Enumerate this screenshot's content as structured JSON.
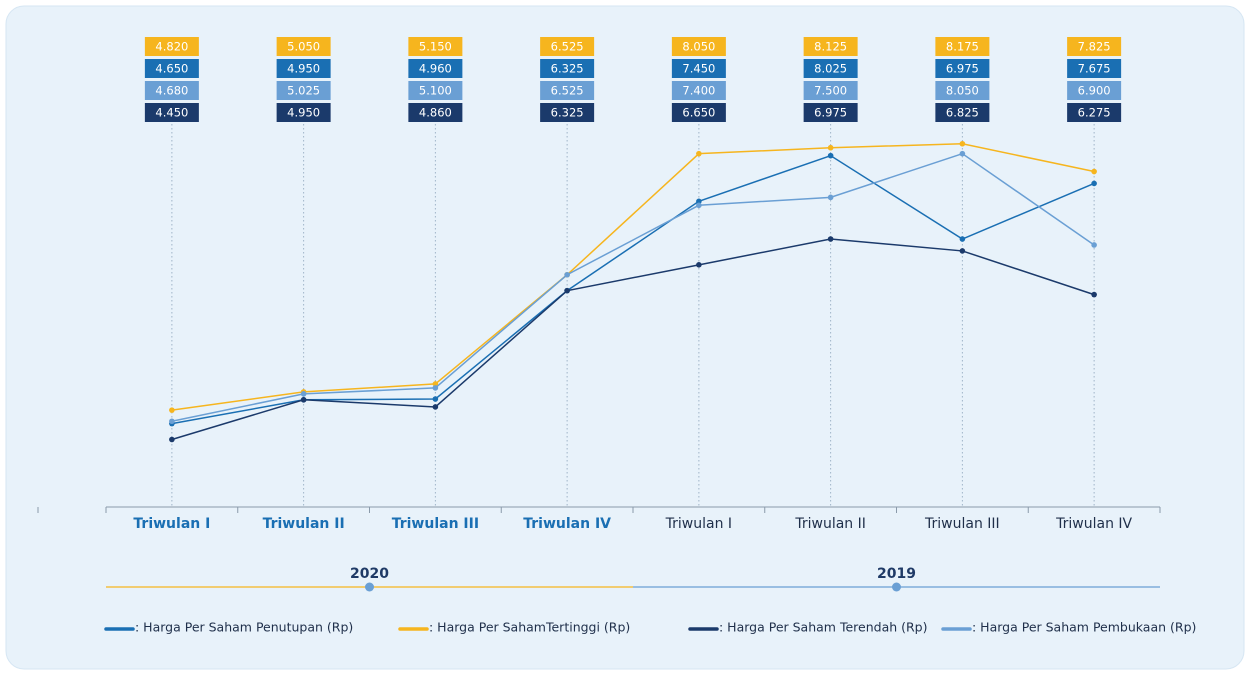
{
  "chart_data": {
    "type": "line",
    "groups": [
      {
        "name": "2020",
        "color": "#f6b51e",
        "categories": [
          "Triwulan I",
          "Triwulan II",
          "Triwulan III",
          "Triwulan IV"
        ]
      },
      {
        "name": "2019",
        "color": "#6a9fd4",
        "categories": [
          "Triwulan I",
          "Triwulan II",
          "Triwulan III",
          "Triwulan IV"
        ]
      }
    ],
    "ylim": [
      3600,
      8600
    ],
    "series": [
      {
        "name": ": Harga Per SahamTertinggi (Rp)",
        "color": "#f6b51e",
        "values": [
          4820,
          5050,
          5150,
          6525,
          8050,
          8125,
          8175,
          7825
        ],
        "value_labels": [
          "4.820",
          "5.050",
          "5.150",
          "6.525",
          "8.050",
          "8.125",
          "8.175",
          "7.825"
        ]
      },
      {
        "name": ": Harga Per Saham Penutupan (Rp)",
        "color": "#1a6fb3",
        "values": [
          4650,
          4950,
          4960,
          6325,
          7450,
          8025,
          6975,
          7675
        ],
        "value_labels": [
          "4.650",
          "4.950",
          "4.960",
          "6.325",
          "7.450",
          "8.025",
          "6.975",
          "7.675"
        ]
      },
      {
        "name": ": Harga Per Saham Pembukaan (Rp)",
        "color": "#6a9fd4",
        "values": [
          4680,
          5025,
          5100,
          6525,
          7400,
          7500,
          8050,
          6900
        ],
        "value_labels": [
          "4.680",
          "5.025",
          "5.100",
          "6.525",
          "7.400",
          "7.500",
          "8.050",
          "6.900"
        ]
      },
      {
        "name": ": Harga Per Saham Terendah (Rp)",
        "color": "#1b3a6b",
        "values": [
          4450,
          4950,
          4860,
          6325,
          6650,
          6975,
          6825,
          6275
        ],
        "value_labels": [
          "4.450",
          "4.950",
          "4.860",
          "6.325",
          "6.650",
          "6.975",
          "6.825",
          "6.275"
        ]
      }
    ]
  }
}
